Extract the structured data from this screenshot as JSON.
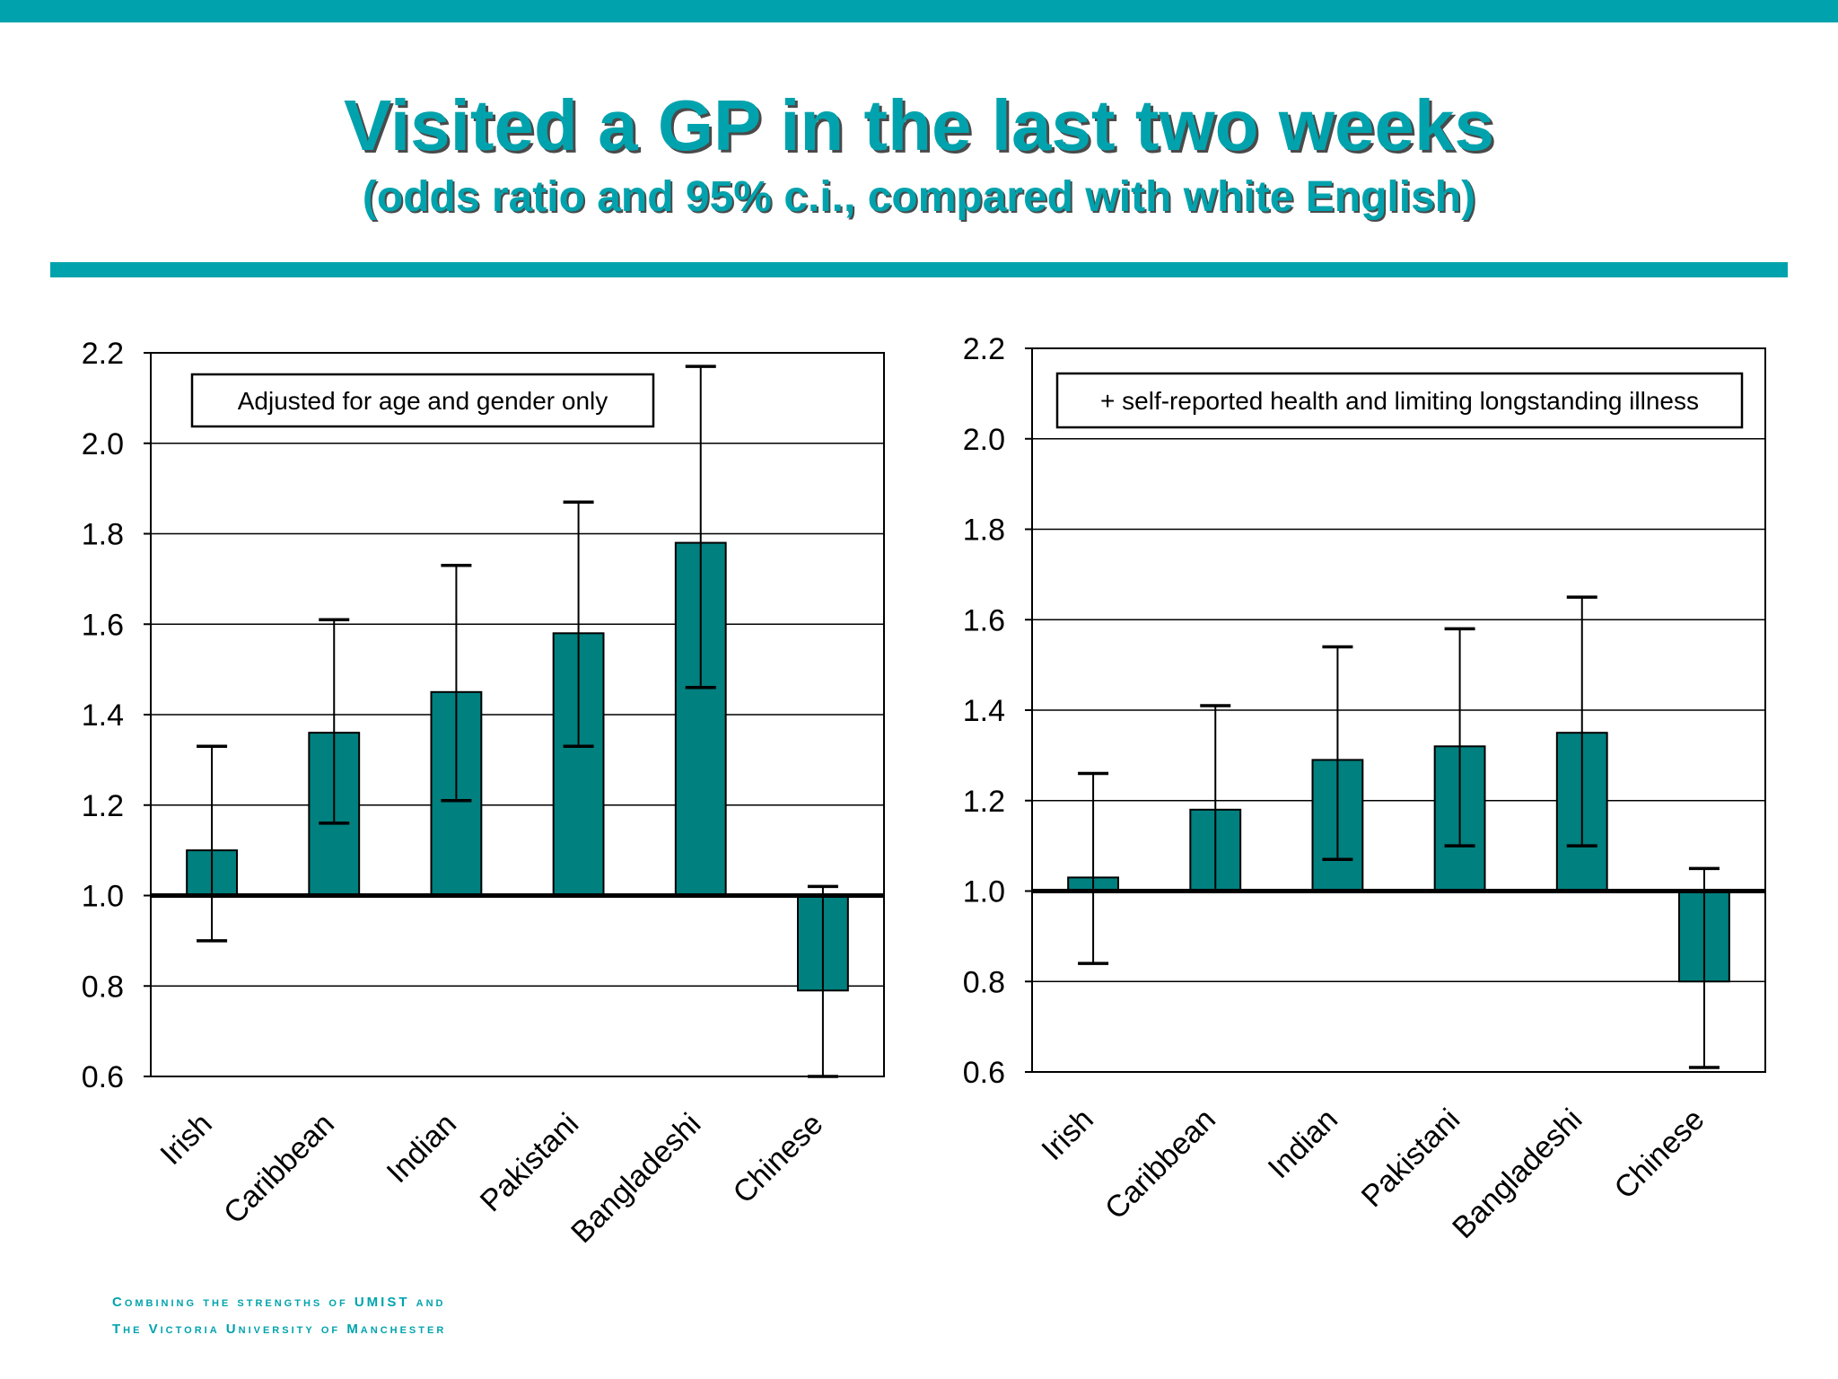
{
  "slide": {
    "title": "Visited a GP in the last two weeks",
    "subtitle": "(odds ratio and 95% c.i., compared with white English)",
    "footer_line1": "Combining the strengths of UMIST and",
    "footer_line2": "The Victoria University of Manchester"
  },
  "colors": {
    "accent": "#00a3ad",
    "bar": "#00807f",
    "title_shadow": "#4a4a4a"
  },
  "chart_data": [
    {
      "type": "bar",
      "title": "",
      "legend_text": "Adjusted for age and gender only",
      "categories": [
        "Irish",
        "Caribbean",
        "Indian",
        "Pakistani",
        "Bangladeshi",
        "Chinese"
      ],
      "values": [
        1.1,
        1.36,
        1.45,
        1.58,
        1.78,
        0.79
      ],
      "ci_low": [
        0.9,
        1.16,
        1.21,
        1.33,
        1.46,
        0.6
      ],
      "ci_high": [
        1.33,
        1.61,
        1.73,
        1.87,
        2.17,
        1.02
      ],
      "baseline": 1.0,
      "ylim": [
        0.6,
        2.2
      ],
      "yticks": [
        "0.6",
        "0.8",
        "1.0",
        "1.2",
        "1.4",
        "1.6",
        "1.8",
        "2.0",
        "2.2"
      ],
      "grid": true
    },
    {
      "type": "bar",
      "title": "",
      "legend_text": "+ self-reported health and limiting longstanding illness",
      "categories": [
        "Irish",
        "Caribbean",
        "Indian",
        "Pakistani",
        "Bangladeshi",
        "Chinese"
      ],
      "values": [
        1.03,
        1.18,
        1.29,
        1.32,
        1.35,
        0.8
      ],
      "ci_low": [
        0.84,
        1.0,
        1.07,
        1.1,
        1.1,
        0.61
      ],
      "ci_high": [
        1.26,
        1.41,
        1.54,
        1.58,
        1.65,
        1.05
      ],
      "baseline": 1.0,
      "ylim": [
        0.6,
        2.2
      ],
      "yticks": [
        "0.6",
        "0.8",
        "1.0",
        "1.2",
        "1.4",
        "1.6",
        "1.8",
        "2.0",
        "2.2"
      ],
      "grid": true
    }
  ]
}
